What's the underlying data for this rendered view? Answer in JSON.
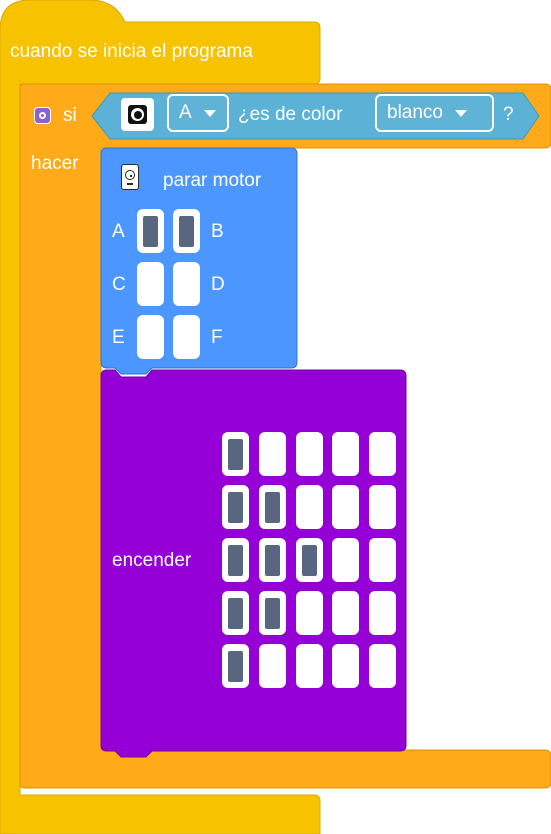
{
  "colors": {
    "event_block": "#f7c300",
    "control_block": "#ffab19",
    "sensor_block": "#5cb1d6",
    "motor_block": "#4c97ff",
    "display_block": "#9400d6",
    "active_cell": "#596680"
  },
  "hat_block": {
    "label": "cuando se inicia el programa"
  },
  "if_block": {
    "icon": "gear-icon",
    "if_label": "si",
    "do_label": "hacer",
    "condition": {
      "sensor_icon": "color-sensor-icon",
      "port": "A",
      "question": "¿es de color",
      "color": "blanco",
      "qmark": "?"
    }
  },
  "motor_block": {
    "icon": "motor-icon",
    "title": "parar motor",
    "ports": [
      {
        "label": "A",
        "selected": true
      },
      {
        "label": "B",
        "selected": true
      },
      {
        "label": "C",
        "selected": false
      },
      {
        "label": "D",
        "selected": false
      },
      {
        "label": "E",
        "selected": false
      },
      {
        "label": "F",
        "selected": false
      }
    ]
  },
  "display_block": {
    "label": "encender",
    "matrix": [
      [
        1,
        0,
        0,
        0,
        0
      ],
      [
        1,
        1,
        0,
        0,
        0
      ],
      [
        1,
        1,
        1,
        0,
        0
      ],
      [
        1,
        1,
        0,
        0,
        0
      ],
      [
        1,
        0,
        0,
        0,
        0
      ]
    ]
  }
}
